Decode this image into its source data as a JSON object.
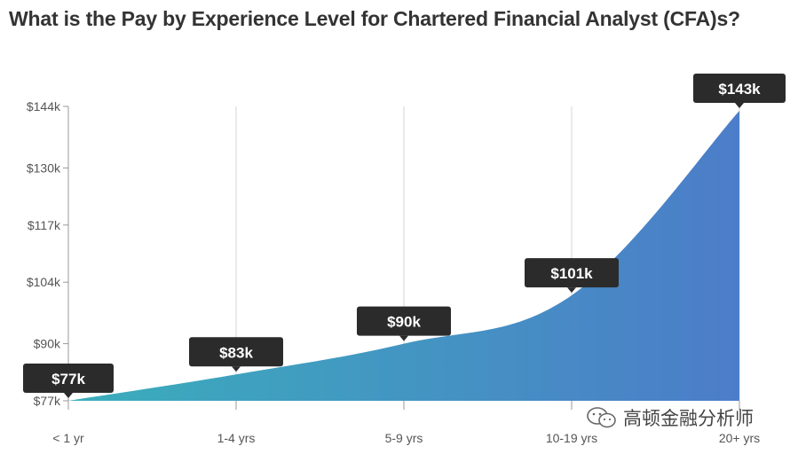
{
  "title": "What is the Pay by Experience Level for Chartered Financial Analyst (CFA)s?",
  "watermark": "高顿金融分析师",
  "colors": {
    "area_start": "#3aaebb",
    "area_end": "#4c7dc9",
    "label_bg": "#2b2b2b",
    "grid": "#d4d4d4"
  },
  "chart_data": {
    "type": "area",
    "title": "What is the Pay by Experience Level for Chartered Financial Analyst (CFA)s?",
    "xlabel": "",
    "ylabel": "",
    "categories": [
      "< 1 yr",
      "1-4 yrs",
      "5-9 yrs",
      "10-19 yrs",
      "20+ yrs"
    ],
    "values": [
      77,
      83,
      90,
      101,
      143
    ],
    "data_labels": [
      "$77k",
      "$83k",
      "$90k",
      "$101k",
      "$143k"
    ],
    "y_ticks": [
      77,
      90,
      104,
      117,
      130,
      144
    ],
    "y_tick_labels": [
      "$77k",
      "$90k",
      "$104k",
      "$117k",
      "$130k",
      "$144k"
    ],
    "ylim": [
      77,
      144
    ],
    "unit": "thousand USD",
    "grid": "vertical"
  }
}
